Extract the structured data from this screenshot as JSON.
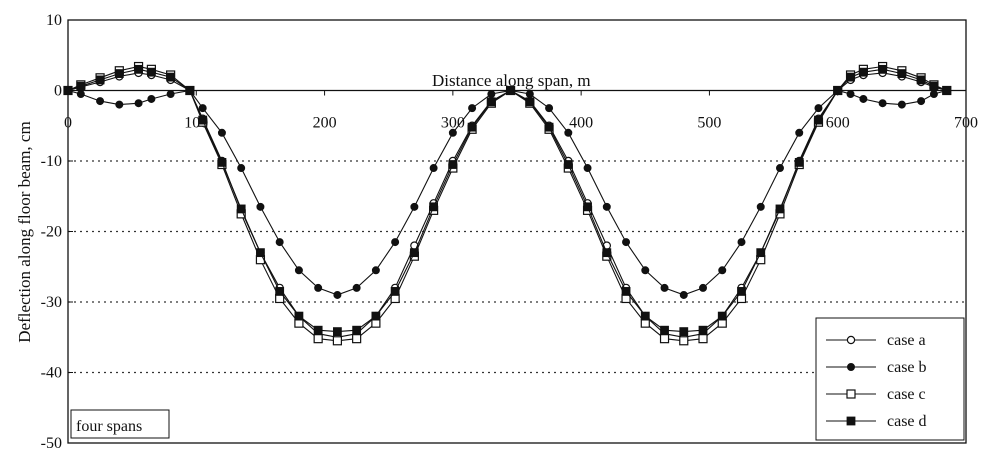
{
  "chart_data": {
    "type": "line",
    "xlabel": "Distance along span, m",
    "ylabel": "Deflection along floor beam, cm",
    "xlim": [
      0,
      700
    ],
    "ylim": [
      -50,
      10
    ],
    "xticks": [
      "0",
      "100",
      "200",
      "300",
      "400",
      "500",
      "600",
      "700"
    ],
    "yticks": [
      "10",
      "0",
      "-10",
      "-20",
      "-30",
      "-40",
      "-50"
    ],
    "grid": "dotted horizontal at -10, -20, -30, -40",
    "legend_position": "bottom-right",
    "annotation": "four spans",
    "x": [
      0,
      10,
      25,
      40,
      55,
      65,
      80,
      95,
      105,
      120,
      135,
      150,
      165,
      180,
      195,
      210,
      225,
      240,
      255,
      270,
      285,
      300,
      315,
      330,
      345,
      360,
      375,
      390,
      405,
      420,
      435,
      450,
      465,
      480,
      495,
      510,
      525,
      540,
      555,
      570,
      585,
      600,
      610,
      620,
      635,
      650,
      665,
      675,
      685
    ],
    "series": [
      {
        "name": "case a",
        "marker": "open-circle",
        "values": [
          0,
          0.5,
          1.2,
          2.0,
          2.5,
          2.2,
          1.5,
          0,
          -4,
          -10,
          -17,
          -23,
          -28,
          -32,
          -34.5,
          -35,
          -34.5,
          -32,
          -28,
          -22,
          -16,
          -10,
          -5,
          -1.5,
          0,
          -1.5,
          -5,
          -10,
          -16,
          -22,
          -28,
          -32,
          -34.5,
          -35,
          -34.5,
          -32,
          -28,
          -23,
          -17,
          -10,
          -4,
          0,
          1.5,
          2.2,
          2.5,
          2.0,
          1.2,
          0.5,
          0
        ]
      },
      {
        "name": "case b",
        "marker": "filled-circle",
        "values": [
          0,
          -0.5,
          -1.5,
          -2,
          -1.8,
          -1.2,
          -0.5,
          0,
          -2.5,
          -6,
          -11,
          -16.5,
          -21.5,
          -25.5,
          -28,
          -29,
          -28,
          -25.5,
          -21.5,
          -16.5,
          -11,
          -6,
          -2.5,
          -0.5,
          0,
          -0.5,
          -2.5,
          -6,
          -11,
          -16.5,
          -21.5,
          -25.5,
          -28,
          -29,
          -28,
          -25.5,
          -21.5,
          -16.5,
          -11,
          -6,
          -2.5,
          0,
          -0.5,
          -1.2,
          -1.8,
          -2,
          -1.5,
          -0.5,
          0
        ]
      },
      {
        "name": "case c",
        "marker": "open-square",
        "values": [
          0,
          0.8,
          1.8,
          2.8,
          3.4,
          3.0,
          2.2,
          0,
          -4.5,
          -10.5,
          -17.5,
          -24,
          -29.5,
          -33,
          -35.2,
          -35.5,
          -35.2,
          -33,
          -29.5,
          -23.5,
          -17,
          -11,
          -5.5,
          -1.8,
          0,
          -1.8,
          -5.5,
          -11,
          -17,
          -23.5,
          -29.5,
          -33,
          -35.2,
          -35.5,
          -35.2,
          -33,
          -29.5,
          -24,
          -17.5,
          -10.5,
          -4.5,
          0,
          2.2,
          3.0,
          3.4,
          2.8,
          1.8,
          0.8,
          0
        ]
      },
      {
        "name": "case d",
        "marker": "filled-square",
        "values": [
          0,
          0.6,
          1.5,
          2.4,
          3.0,
          2.6,
          1.9,
          0,
          -4.2,
          -10.2,
          -16.8,
          -23,
          -28.5,
          -32,
          -34,
          -34.2,
          -34,
          -32,
          -28.5,
          -23,
          -16.5,
          -10.5,
          -5.2,
          -1.6,
          0,
          -1.6,
          -5.2,
          -10.5,
          -16.5,
          -23,
          -28.5,
          -32,
          -34,
          -34.2,
          -34,
          -32,
          -28.5,
          -23,
          -16.8,
          -10.2,
          -4.2,
          0,
          1.9,
          2.6,
          3.0,
          2.4,
          1.5,
          0.6,
          0
        ]
      }
    ]
  }
}
